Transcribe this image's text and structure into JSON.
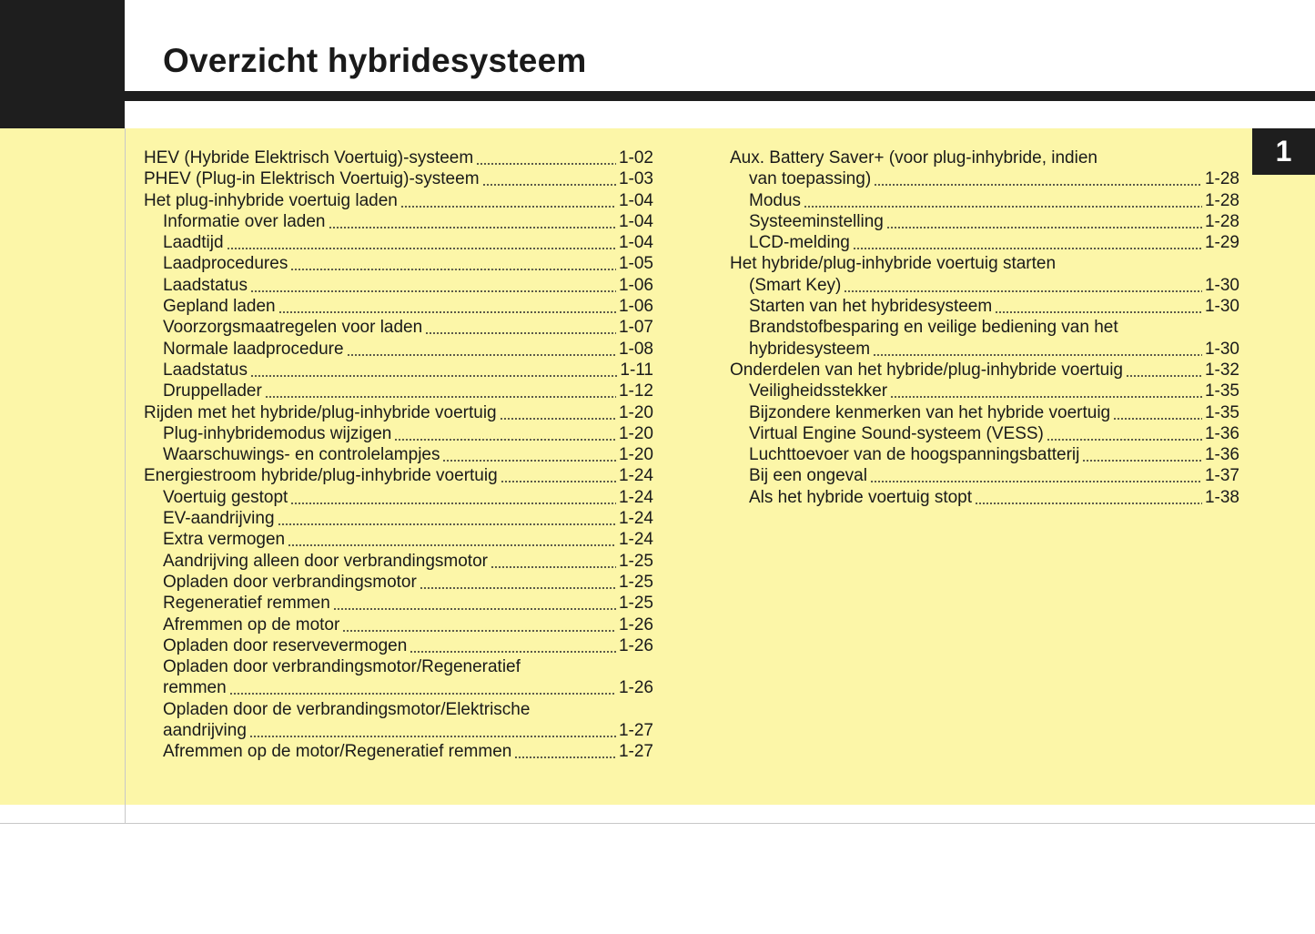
{
  "header": {
    "title": "Overzicht hybridesysteem",
    "chapter": "1"
  },
  "columns": [
    {
      "entries": [
        {
          "lines": [
            "HEV (Hybride Elektrisch Voertuig)-systeem"
          ],
          "page": "1-02"
        },
        {
          "lines": [
            "PHEV (Plug-in Elektrisch Voertuig)-systeem"
          ],
          "page": "1-03"
        },
        {
          "lines": [
            "Het plug-inhybride voertuig laden"
          ],
          "page": "1-04",
          "children": [
            {
              "lines": [
                "Informatie over laden"
              ],
              "page": "1-04"
            },
            {
              "lines": [
                "Laadtijd"
              ],
              "page": "1-04"
            },
            {
              "lines": [
                "Laadprocedures"
              ],
              "page": "1-05"
            },
            {
              "lines": [
                "Laadstatus"
              ],
              "page": "1-06"
            },
            {
              "lines": [
                "Gepland laden"
              ],
              "page": "1-06"
            },
            {
              "lines": [
                "Voorzorgsmaatregelen voor laden"
              ],
              "page": "1-07"
            },
            {
              "lines": [
                "Normale laadprocedure"
              ],
              "page": "1-08"
            },
            {
              "lines": [
                "Laadstatus"
              ],
              "page": "1-11"
            },
            {
              "lines": [
                "Druppellader"
              ],
              "page": "1-12"
            }
          ]
        },
        {
          "lines": [
            "Rijden met het hybride/plug-inhybride voertuig"
          ],
          "page": "1-20",
          "children": [
            {
              "lines": [
                "Plug-inhybridemodus wijzigen"
              ],
              "page": "1-20"
            },
            {
              "lines": [
                "Waarschuwings- en controlelampjes"
              ],
              "page": "1-20"
            }
          ]
        },
        {
          "lines": [
            "Energiestroom hybride/plug-inhybride voertuig"
          ],
          "page": "1-24",
          "children": [
            {
              "lines": [
                "Voertuig gestopt"
              ],
              "page": "1-24"
            },
            {
              "lines": [
                "EV-aandrijving"
              ],
              "page": "1-24"
            },
            {
              "lines": [
                "Extra vermogen"
              ],
              "page": "1-24"
            },
            {
              "lines": [
                "Aandrijving alleen door verbrandingsmotor"
              ],
              "page": "1-25"
            },
            {
              "lines": [
                "Opladen door verbrandingsmotor"
              ],
              "page": "1-25"
            },
            {
              "lines": [
                "Regeneratief remmen"
              ],
              "page": "1-25"
            },
            {
              "lines": [
                "Afremmen op de motor"
              ],
              "page": "1-26"
            },
            {
              "lines": [
                "Opladen door reservevermogen"
              ],
              "page": "1-26"
            },
            {
              "lines": [
                "Opladen door verbrandingsmotor/Regeneratief",
                "remmen"
              ],
              "page": "1-26"
            },
            {
              "lines": [
                "Opladen door de verbrandingsmotor/Elektrische",
                "aandrijving"
              ],
              "page": "1-27"
            },
            {
              "lines": [
                "Afremmen op de motor/Regeneratief remmen"
              ],
              "page": "1-27"
            }
          ]
        }
      ]
    },
    {
      "entries": [
        {
          "lines": [
            "Aux. Battery Saver+ (voor plug-inhybride, indien",
            "van toepassing)"
          ],
          "page": "1-28",
          "children": [
            {
              "lines": [
                "Modus"
              ],
              "page": "1-28"
            },
            {
              "lines": [
                "Systeeminstelling"
              ],
              "page": "1-28"
            },
            {
              "lines": [
                "LCD-melding"
              ],
              "page": "1-29"
            }
          ]
        },
        {
          "lines": [
            "Het hybride/plug-inhybride voertuig starten",
            "(Smart Key)"
          ],
          "page": "1-30",
          "children": [
            {
              "lines": [
                "Starten van het hybridesysteem"
              ],
              "page": "1-30"
            },
            {
              "lines": [
                "Brandstofbesparing en veilige bediening van het",
                "hybridesysteem"
              ],
              "page": "1-30"
            }
          ]
        },
        {
          "lines": [
            "Onderdelen van het hybride/plug-inhybride voertuig"
          ],
          "page": "1-32",
          "children": [
            {
              "lines": [
                "Veiligheidsstekker"
              ],
              "page": "1-35"
            },
            {
              "lines": [
                "Bijzondere kenmerken van het hybride voertuig"
              ],
              "page": "1-35"
            },
            {
              "lines": [
                "Virtual Engine Sound-systeem (VESS)"
              ],
              "page": "1-36"
            },
            {
              "lines": [
                "Luchttoevoer van de hoogspanningsbatterij"
              ],
              "page": "1-36"
            },
            {
              "lines": [
                "Bij een ongeval"
              ],
              "page": "1-37"
            },
            {
              "lines": [
                "Als het hybride voertuig stopt"
              ],
              "page": "1-38"
            }
          ]
        }
      ]
    }
  ]
}
